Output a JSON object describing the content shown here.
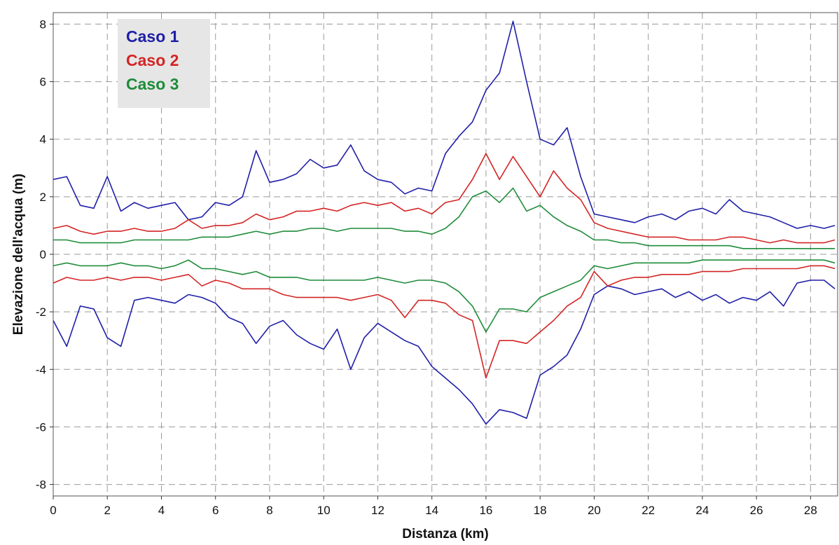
{
  "chart_data": {
    "type": "line",
    "title": "",
    "xlabel": "Distanza (km)",
    "ylabel": "Elevazione dell'acqua (m)",
    "xlim": [
      0,
      29
    ],
    "ylim": [
      -8.4,
      8.4
    ],
    "xticks": [
      0,
      2,
      4,
      6,
      8,
      10,
      12,
      14,
      16,
      18,
      20,
      22,
      24,
      26,
      28
    ],
    "yticks": [
      -8,
      -6,
      -4,
      -2,
      0,
      2,
      4,
      6,
      8
    ],
    "xtick_labels": [
      "0",
      "2",
      "4",
      "6",
      "8",
      "10",
      "12",
      "14",
      "16",
      "18",
      "20",
      "22",
      "24",
      "26",
      "28"
    ],
    "ytick_labels": [
      "-8",
      "-6",
      "-4",
      "-2",
      "0",
      "2",
      "4",
      "6",
      "8"
    ],
    "grid": true,
    "grid_style": "dashed",
    "legend_position": "top-left",
    "legend_background": "#e6e6e6",
    "series": [
      {
        "name": "Caso 1",
        "color": "#1f1fa8",
        "x_upper": [
          0,
          0.5,
          1,
          1.5,
          2,
          2.5,
          3,
          3.5,
          4,
          4.5,
          5,
          5.5,
          6,
          6.5,
          7,
          7.5,
          8,
          8.5,
          9,
          9.5,
          10,
          10.5,
          11,
          11.5,
          12,
          12.5,
          13,
          13.5,
          14,
          14.5,
          15,
          15.5,
          16,
          16.5,
          17,
          17.5,
          18,
          18.5,
          19,
          19.5,
          20,
          20.5,
          21,
          21.5,
          22,
          22.5,
          23,
          23.5,
          24,
          24.5,
          25,
          25.5,
          26,
          26.5,
          27,
          27.5,
          28,
          28.5,
          28.9
        ],
        "y_upper": [
          2.6,
          2.7,
          1.7,
          1.6,
          2.7,
          1.5,
          1.8,
          1.6,
          1.7,
          1.8,
          1.2,
          1.3,
          1.8,
          1.7,
          2.0,
          3.6,
          2.5,
          2.6,
          2.8,
          3.3,
          3.0,
          3.1,
          3.8,
          2.9,
          2.6,
          2.5,
          2.1,
          2.3,
          2.2,
          3.5,
          4.1,
          4.6,
          5.7,
          6.3,
          8.1,
          6.0,
          4.0,
          3.8,
          4.4,
          2.7,
          1.4,
          1.3,
          1.2,
          1.1,
          1.3,
          1.4,
          1.2,
          1.5,
          1.6,
          1.4,
          1.9,
          1.5,
          1.4,
          1.3,
          1.1,
          0.9,
          1.0,
          0.9,
          1.0
        ],
        "x_lower": [
          0,
          0.5,
          1,
          1.5,
          2,
          2.5,
          3,
          3.5,
          4,
          4.5,
          5,
          5.5,
          6,
          6.5,
          7,
          7.5,
          8,
          8.5,
          9,
          9.5,
          10,
          10.5,
          11,
          11.5,
          12,
          12.5,
          13,
          13.5,
          14,
          14.5,
          15,
          15.5,
          16,
          16.5,
          17,
          17.5,
          18,
          18.5,
          19,
          19.5,
          20,
          20.5,
          21,
          21.5,
          22,
          22.5,
          23,
          23.5,
          24,
          24.5,
          25,
          25.5,
          26,
          26.5,
          27,
          27.5,
          28,
          28.5,
          28.9
        ],
        "y_lower": [
          -2.3,
          -3.2,
          -1.8,
          -1.9,
          -2.9,
          -3.2,
          -1.6,
          -1.5,
          -1.6,
          -1.7,
          -1.4,
          -1.5,
          -1.7,
          -2.2,
          -2.4,
          -3.1,
          -2.5,
          -2.3,
          -2.8,
          -3.1,
          -3.3,
          -2.6,
          -4.0,
          -2.9,
          -2.4,
          -2.7,
          -3.0,
          -3.2,
          -3.9,
          -4.3,
          -4.7,
          -5.2,
          -5.9,
          -5.4,
          -5.5,
          -5.7,
          -4.2,
          -3.9,
          -3.5,
          -2.6,
          -1.4,
          -1.1,
          -1.2,
          -1.4,
          -1.3,
          -1.2,
          -1.5,
          -1.3,
          -1.6,
          -1.4,
          -1.7,
          -1.5,
          -1.6,
          -1.3,
          -1.8,
          -1.0,
          -0.9,
          -0.9,
          -1.2
        ]
      },
      {
        "name": "Caso 2",
        "color": "#d42424",
        "x_upper": [
          0,
          0.5,
          1,
          1.5,
          2,
          2.5,
          3,
          3.5,
          4,
          4.5,
          5,
          5.5,
          6,
          6.5,
          7,
          7.5,
          8,
          8.5,
          9,
          9.5,
          10,
          10.5,
          11,
          11.5,
          12,
          12.5,
          13,
          13.5,
          14,
          14.5,
          15,
          15.5,
          16,
          16.5,
          17,
          17.5,
          18,
          18.5,
          19,
          19.5,
          20,
          20.5,
          21,
          21.5,
          22,
          22.5,
          23,
          23.5,
          24,
          24.5,
          25,
          25.5,
          26,
          26.5,
          27,
          27.5,
          28,
          28.5,
          28.9
        ],
        "y_upper": [
          0.9,
          1.0,
          0.8,
          0.7,
          0.8,
          0.8,
          0.9,
          0.8,
          0.8,
          0.9,
          1.2,
          0.9,
          1.0,
          1.0,
          1.1,
          1.4,
          1.2,
          1.3,
          1.5,
          1.5,
          1.6,
          1.5,
          1.7,
          1.8,
          1.7,
          1.8,
          1.5,
          1.6,
          1.4,
          1.8,
          1.9,
          2.6,
          3.5,
          2.6,
          3.4,
          2.7,
          2.0,
          2.9,
          2.3,
          1.9,
          1.1,
          0.9,
          0.8,
          0.7,
          0.6,
          0.6,
          0.6,
          0.5,
          0.5,
          0.5,
          0.6,
          0.6,
          0.5,
          0.4,
          0.5,
          0.4,
          0.4,
          0.4,
          0.5
        ],
        "x_lower": [
          0,
          0.5,
          1,
          1.5,
          2,
          2.5,
          3,
          3.5,
          4,
          4.5,
          5,
          5.5,
          6,
          6.5,
          7,
          7.5,
          8,
          8.5,
          9,
          9.5,
          10,
          10.5,
          11,
          11.5,
          12,
          12.5,
          13,
          13.5,
          14,
          14.5,
          15,
          15.5,
          16,
          16.5,
          17,
          17.5,
          18,
          18.5,
          19,
          19.5,
          20,
          20.5,
          21,
          21.5,
          22,
          22.5,
          23,
          23.5,
          24,
          24.5,
          25,
          25.5,
          26,
          26.5,
          27,
          27.5,
          28,
          28.5,
          28.9
        ],
        "y_lower": [
          -1.0,
          -0.8,
          -0.9,
          -0.9,
          -0.8,
          -0.9,
          -0.8,
          -0.8,
          -0.9,
          -0.8,
          -0.7,
          -1.1,
          -0.9,
          -1.0,
          -1.2,
          -1.2,
          -1.2,
          -1.4,
          -1.5,
          -1.5,
          -1.5,
          -1.5,
          -1.6,
          -1.5,
          -1.4,
          -1.6,
          -2.2,
          -1.6,
          -1.6,
          -1.7,
          -2.1,
          -2.3,
          -4.3,
          -3.0,
          -3.0,
          -3.1,
          -2.7,
          -2.3,
          -1.8,
          -1.5,
          -0.6,
          -1.1,
          -0.9,
          -0.8,
          -0.8,
          -0.7,
          -0.7,
          -0.7,
          -0.6,
          -0.6,
          -0.6,
          -0.5,
          -0.5,
          -0.5,
          -0.5,
          -0.5,
          -0.4,
          -0.4,
          -0.5
        ]
      },
      {
        "name": "Caso 3",
        "color": "#1e8c3a",
        "x_upper": [
          0,
          0.5,
          1,
          1.5,
          2,
          2.5,
          3,
          3.5,
          4,
          4.5,
          5,
          5.5,
          6,
          6.5,
          7,
          7.5,
          8,
          8.5,
          9,
          9.5,
          10,
          10.5,
          11,
          11.5,
          12,
          12.5,
          13,
          13.5,
          14,
          14.5,
          15,
          15.5,
          16,
          16.5,
          17,
          17.5,
          18,
          18.5,
          19,
          19.5,
          20,
          20.5,
          21,
          21.5,
          22,
          22.5,
          23,
          23.5,
          24,
          24.5,
          25,
          25.5,
          26,
          26.5,
          27,
          27.5,
          28,
          28.5,
          28.9
        ],
        "y_upper": [
          0.5,
          0.5,
          0.4,
          0.4,
          0.4,
          0.4,
          0.5,
          0.5,
          0.5,
          0.5,
          0.5,
          0.6,
          0.6,
          0.6,
          0.7,
          0.8,
          0.7,
          0.8,
          0.8,
          0.9,
          0.9,
          0.8,
          0.9,
          0.9,
          0.9,
          0.9,
          0.8,
          0.8,
          0.7,
          0.9,
          1.3,
          2.0,
          2.2,
          1.8,
          2.3,
          1.5,
          1.7,
          1.3,
          1.0,
          0.8,
          0.5,
          0.5,
          0.4,
          0.4,
          0.3,
          0.3,
          0.3,
          0.3,
          0.3,
          0.3,
          0.3,
          0.2,
          0.2,
          0.2,
          0.2,
          0.2,
          0.2,
          0.2,
          0.2
        ],
        "x_lower": [
          0,
          0.5,
          1,
          1.5,
          2,
          2.5,
          3,
          3.5,
          4,
          4.5,
          5,
          5.5,
          6,
          6.5,
          7,
          7.5,
          8,
          8.5,
          9,
          9.5,
          10,
          10.5,
          11,
          11.5,
          12,
          12.5,
          13,
          13.5,
          14,
          14.5,
          15,
          15.5,
          16,
          16.5,
          17,
          17.5,
          18,
          18.5,
          19,
          19.5,
          20,
          20.5,
          21,
          21.5,
          22,
          22.5,
          23,
          23.5,
          24,
          24.5,
          25,
          25.5,
          26,
          26.5,
          27,
          27.5,
          28,
          28.5,
          28.9
        ],
        "y_lower": [
          -0.4,
          -0.3,
          -0.4,
          -0.4,
          -0.4,
          -0.3,
          -0.4,
          -0.4,
          -0.5,
          -0.4,
          -0.2,
          -0.5,
          -0.5,
          -0.6,
          -0.7,
          -0.6,
          -0.8,
          -0.8,
          -0.8,
          -0.9,
          -0.9,
          -0.9,
          -0.9,
          -0.9,
          -0.8,
          -0.9,
          -1.0,
          -0.9,
          -0.9,
          -1.0,
          -1.3,
          -1.8,
          -2.7,
          -1.9,
          -1.9,
          -2.0,
          -1.5,
          -1.3,
          -1.1,
          -0.9,
          -0.4,
          -0.5,
          -0.4,
          -0.3,
          -0.3,
          -0.3,
          -0.3,
          -0.3,
          -0.2,
          -0.2,
          -0.2,
          -0.2,
          -0.2,
          -0.2,
          -0.2,
          -0.2,
          -0.2,
          -0.2,
          -0.3
        ]
      }
    ]
  }
}
